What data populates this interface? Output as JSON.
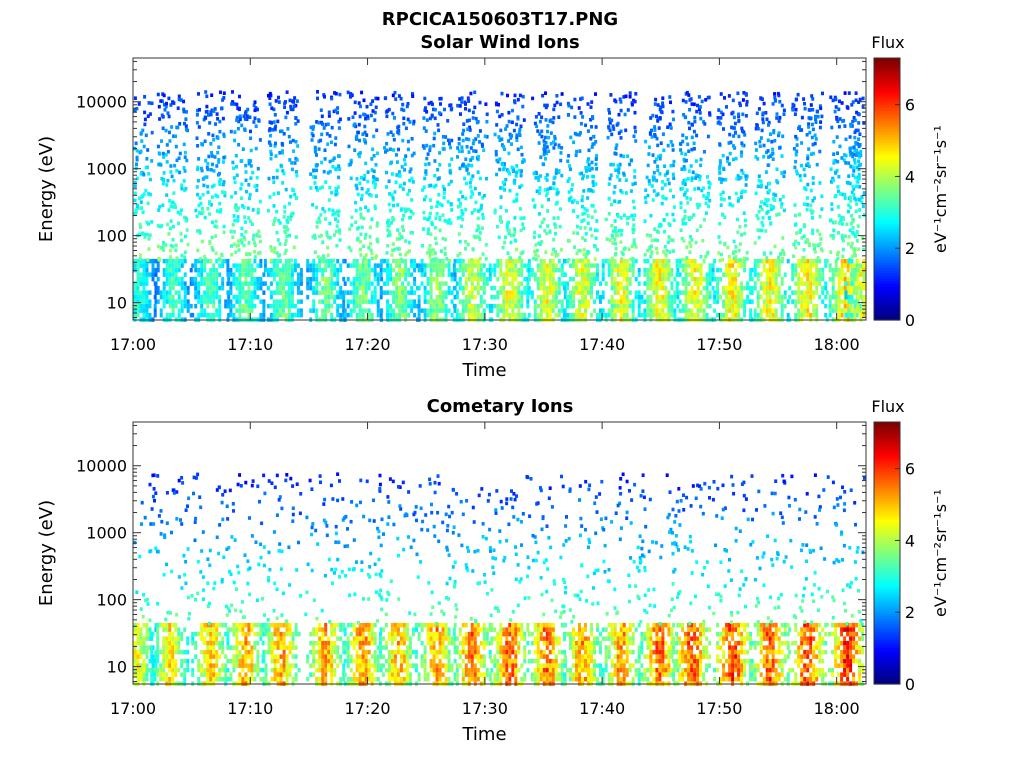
{
  "page": {
    "title": "RPCICA150603T17.PNG"
  },
  "chart_data": [
    {
      "type": "heatmap",
      "title": "Solar Wind Ions",
      "xlabel": "Time",
      "ylabel": "Energy (eV)",
      "x_tick_labels": [
        "17:00",
        "17:10",
        "17:20",
        "17:30",
        "17:40",
        "17:50",
        "18:00"
      ],
      "x_range_minutes": [
        0,
        62.5
      ],
      "y_scale": "log",
      "y_range": [
        5.5,
        45000
      ],
      "y_ticks": [
        10,
        100,
        1000,
        10000
      ],
      "y_tick_labels": [
        "10",
        "100",
        "1000",
        "10000"
      ],
      "colorbar": {
        "title": "Flux",
        "label": "eV⁻¹cm⁻²sr⁻¹s⁻¹",
        "range": [
          0,
          7.3
        ],
        "ticks": [
          0,
          2,
          4,
          6
        ],
        "tick_labels": [
          "0",
          "2",
          "4",
          "6"
        ],
        "colormap": "jet"
      },
      "bursts_minutes": [
        0.3,
        3.3,
        6.5,
        9.5,
        12.7,
        16.3,
        19.5,
        22.6,
        25.8,
        28.8,
        32.0,
        35.2,
        38.2,
        41.5,
        44.8,
        47.8,
        51.0,
        54.2,
        57.4,
        60.6,
        62.2
      ],
      "bursts_peak_flux": [
        3.4,
        3.6,
        3.8,
        3.9,
        4.0,
        4.0,
        4.1,
        4.2,
        4.3,
        4.8,
        5.0,
        5.0,
        4.9,
        5.0,
        5.1,
        5.1,
        5.2,
        5.2,
        5.3,
        5.4,
        5.0
      ],
      "low_energy_band_eV": [
        5.5,
        45
      ],
      "high_energy_extent_eV": [
        150,
        15000
      ]
    },
    {
      "type": "heatmap",
      "title": "Cometary Ions",
      "xlabel": "Time",
      "ylabel": "Energy (eV)",
      "x_tick_labels": [
        "17:00",
        "17:10",
        "17:20",
        "17:30",
        "17:40",
        "17:50",
        "18:00"
      ],
      "x_range_minutes": [
        0,
        62.5
      ],
      "y_scale": "log",
      "y_range": [
        5.5,
        45000
      ],
      "y_ticks": [
        10,
        100,
        1000,
        10000
      ],
      "y_tick_labels": [
        "10",
        "100",
        "1000",
        "10000"
      ],
      "colorbar": {
        "title": "Flux",
        "label": "eV⁻¹cm⁻²sr⁻¹s⁻¹",
        "range": [
          0,
          7.3
        ],
        "ticks": [
          0,
          2,
          4,
          6
        ],
        "tick_labels": [
          "0",
          "2",
          "4",
          "6"
        ],
        "colormap": "jet"
      },
      "bursts_minutes": [
        0.3,
        3.0,
        6.5,
        9.5,
        12.5,
        16.3,
        19.5,
        22.5,
        25.8,
        28.8,
        32.0,
        35.2,
        38.2,
        41.5,
        44.8,
        47.5,
        51.0,
        54.2,
        57.4,
        60.8
      ],
      "bursts_peak_flux": [
        5.0,
        5.3,
        5.6,
        5.8,
        5.9,
        5.9,
        6.0,
        5.8,
        6.0,
        6.3,
        6.4,
        6.3,
        6.0,
        6.0,
        6.4,
        6.6,
        6.7,
        6.5,
        6.7,
        6.9
      ],
      "low_energy_band_eV": [
        5.5,
        45
      ],
      "high_energy_extent_eV": [
        150,
        8000
      ]
    }
  ]
}
